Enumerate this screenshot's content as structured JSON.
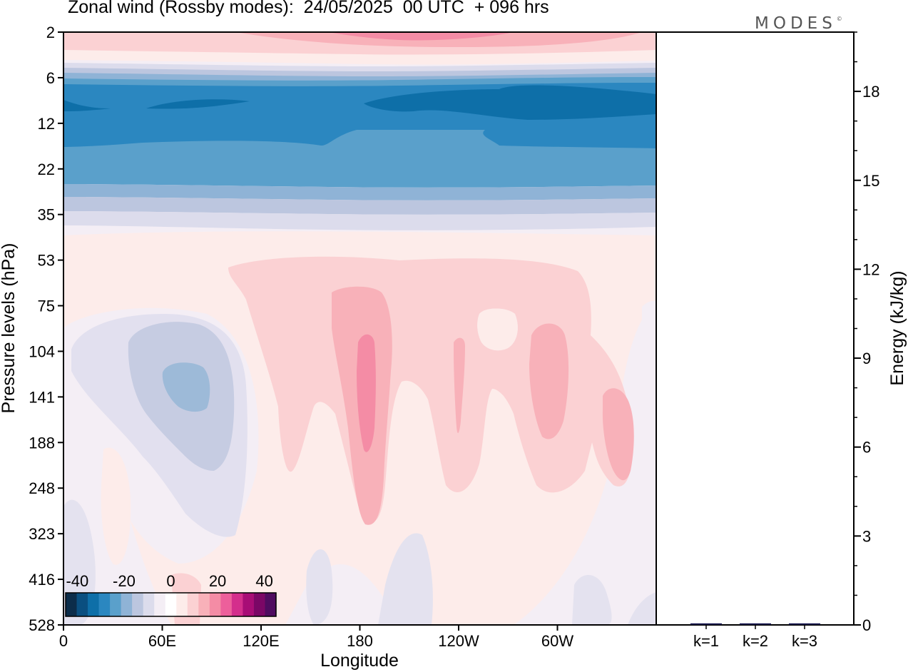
{
  "title": "Zonal wind (Rossby modes):  24/05/2025  00 UTC  + 096 hrs",
  "logo": "MODES",
  "logo_mark": "©",
  "chart_data": [
    {
      "type": "heatmap",
      "title": "Zonal wind (Rossby modes):  24/05/2025  00 UTC  + 096 hrs",
      "xlabel": "Longitude",
      "ylabel": "Pressure levels (hPa)",
      "x_ticks": [
        "0",
        "60E",
        "120E",
        "180",
        "120W",
        "60W"
      ],
      "x_tick_values": [
        0,
        60,
        120,
        180,
        240,
        300
      ],
      "xlim": [
        0,
        360
      ],
      "y_ticks": [
        "2",
        "6",
        "12",
        "22",
        "35",
        "53",
        "75",
        "104",
        "141",
        "188",
        "248",
        "323",
        "416",
        "528"
      ],
      "y_scale": "log",
      "colorbar": {
        "tick_labels": [
          "-40",
          "-20",
          "0",
          "20",
          "40"
        ],
        "tick_values": [
          -40,
          -20,
          0,
          20,
          40
        ],
        "range": [
          -45,
          45
        ],
        "colors": [
          "#0c2d4a",
          "#0a4f80",
          "#0e6fa8",
          "#2b87c0",
          "#5aa0cb",
          "#8fb3d6",
          "#bcc6df",
          "#dcdcec",
          "#f4eef5",
          "#ffffff",
          "#fdecea",
          "#fbd1d3",
          "#f8b1b9",
          "#f48ca5",
          "#ed5f9b",
          "#d42e8c",
          "#a80d76",
          "#7b0766",
          "#4f0c60"
        ],
        "placement": "bottom-left"
      },
      "grid": false
    },
    {
      "type": "bar",
      "ylabel": "Energy (kJ/kg)",
      "categories": [
        "k=1",
        "k=2",
        "k=3"
      ],
      "values": [
        0.05,
        0.05,
        0.05
      ],
      "ylim": [
        0,
        20
      ],
      "y_ticks": [
        "0",
        "3",
        "6",
        "9",
        "12",
        "15",
        "18"
      ],
      "y_tick_values": [
        0,
        3,
        6,
        9,
        12,
        15,
        18
      ],
      "colors": [
        "#000040",
        "#000040",
        "#000040"
      ]
    }
  ]
}
